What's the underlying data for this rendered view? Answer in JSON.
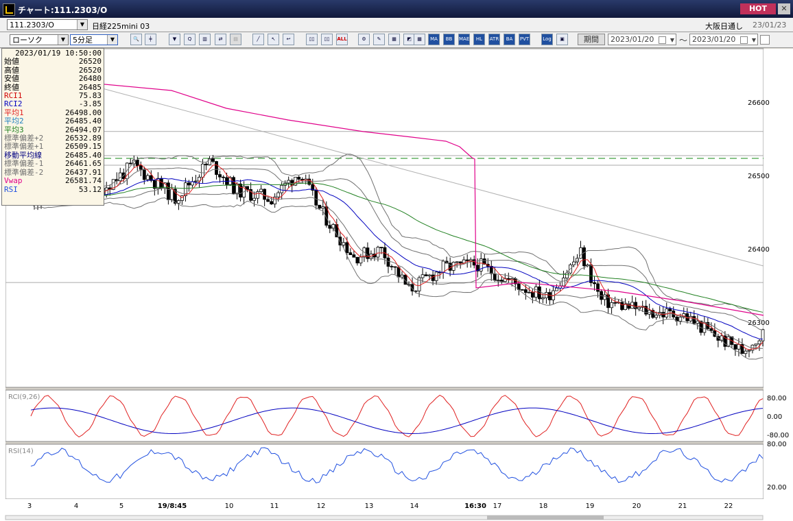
{
  "window": {
    "title": "チャート:111.2303/O",
    "hot_label": "HOT",
    "close_label": "✕",
    "icon": "chart-app-icon"
  },
  "header": {
    "symbol_code": "111.2303/O",
    "symbol_name": "日経225mini 03",
    "session": "大阪日通し",
    "session_date": "23/01/23"
  },
  "toolbar": {
    "chart_type": "ローソク",
    "interval": "5分足",
    "buttons": [
      {
        "name": "zoom-icon",
        "label": "🔍"
      },
      {
        "name": "bar-width-icon",
        "label": "╪"
      },
      {
        "name": "order-icon",
        "label": "▼"
      },
      {
        "name": "search-tool-icon",
        "label": "Q"
      },
      {
        "name": "chart-icon",
        "label": "▥"
      },
      {
        "name": "trade-icon",
        "label": "⇄"
      },
      {
        "name": "grey-tool-icon",
        "label": "▤"
      },
      {
        "name": "trendline-icon",
        "label": "╱"
      },
      {
        "name": "cursor-icon",
        "label": "↖"
      },
      {
        "name": "arrow-icon",
        "label": "↩"
      },
      {
        "name": "candle-a-icon",
        "label": "▯▯"
      },
      {
        "name": "candle-b-icon",
        "label": "▯▯"
      },
      {
        "name": "all-button",
        "label": "ALL"
      },
      {
        "name": "settings-icon",
        "label": "⚙"
      },
      {
        "name": "pen-icon",
        "label": "✎"
      },
      {
        "name": "palette-icon",
        "label": "▦"
      },
      {
        "name": "color-icon",
        "label": "◩"
      },
      {
        "name": "ind-icon",
        "label": "▦"
      },
      {
        "name": "ma-button",
        "label": "MA"
      },
      {
        "name": "bb-button",
        "label": "BB"
      },
      {
        "name": "mae-button",
        "label": "MAE"
      },
      {
        "name": "hl-button",
        "label": "HL"
      },
      {
        "name": "atr-button",
        "label": "ATR"
      },
      {
        "name": "ba-button",
        "label": "BA"
      },
      {
        "name": "pvt-button",
        "label": "PVT"
      },
      {
        "name": "log-button",
        "label": "Log"
      },
      {
        "name": "split-icon",
        "label": "▣"
      }
    ],
    "period_label": "期間",
    "date_from": "2023/01/20",
    "date_to": "2023/01/20",
    "tilde": "〜"
  },
  "info_panel": {
    "datetime": "2023/01/19  10:50:00",
    "rows": [
      {
        "label": "始値",
        "value": "26520",
        "color": "#000"
      },
      {
        "label": "高値",
        "value": "26520",
        "color": "#000"
      },
      {
        "label": "安値",
        "value": "26480",
        "color": "#000"
      },
      {
        "label": "終値",
        "value": "26485",
        "color": "#000"
      },
      {
        "label": "RCI1",
        "value": "75.83",
        "color": "#d00000"
      },
      {
        "label": "RCI2",
        "value": "-3.85",
        "color": "#0000c0"
      },
      {
        "label": "平均1",
        "value": "26498.00",
        "color": "#e02020"
      },
      {
        "label": "平均2",
        "value": "26485.40",
        "color": "#2080c0"
      },
      {
        "label": "平均3",
        "value": "26494.07",
        "color": "#208020"
      },
      {
        "label": "標準偏差+2",
        "value": "26532.89",
        "color": "#707070"
      },
      {
        "label": "標準偏差+1",
        "value": "26509.15",
        "color": "#707070"
      },
      {
        "label": "移動平均線",
        "value": "26485.40",
        "color": "#000080"
      },
      {
        "label": "標準偏差-1",
        "value": "26461.65",
        "color": "#707070"
      },
      {
        "label": "標準偏差-2",
        "value": "26437.91",
        "color": "#707070"
      },
      {
        "label": "Vwap",
        "value": "26581.74",
        "color": "#e0008a"
      },
      {
        "label": "RSI",
        "value": "53.12",
        "color": "#2050e0"
      }
    ]
  },
  "price_axis": {
    "labels": [
      "26600",
      "26500",
      "26400",
      "26300"
    ],
    "values": [
      26600,
      26500,
      26400,
      26300
    ]
  },
  "rci_panel": {
    "title": "RCI(9,26)",
    "labels": [
      "80.00",
      "0.00",
      "-80.00"
    ],
    "values": [
      80,
      0,
      -80
    ]
  },
  "rsi_panel": {
    "title": "RSI(14)",
    "labels": [
      "80.00",
      "20.00"
    ],
    "values": [
      80,
      20
    ]
  },
  "time_axis": {
    "labels": [
      "3",
      "4",
      "5",
      "19/8:45",
      "10",
      "11",
      "12",
      "13",
      "14",
      "16:30",
      "17",
      "18",
      "19",
      "20",
      "21",
      "22"
    ]
  },
  "horizontal_lines": [
    26561,
    26528,
    26515,
    26355
  ],
  "colors": {
    "candle_up": "#ffffff",
    "candle_down": "#000000",
    "ma1": "#e02020",
    "ma2": "#0000c0",
    "ma3": "#208020",
    "bband": "#707070",
    "vwap": "#e0008a",
    "trend": "#b0b0b0",
    "dash": "#40a040",
    "rci1": "#e02020",
    "rci2": "#0000c0",
    "rsi": "#2050e0"
  }
}
